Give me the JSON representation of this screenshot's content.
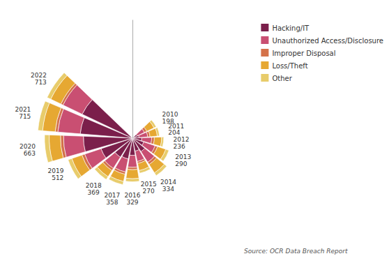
{
  "chart_data": {
    "type": "radial_bar",
    "categories": [
      "2010",
      "2011",
      "2012",
      "2013",
      "2014",
      "2015",
      "2016",
      "2017",
      "2018",
      "2019",
      "2020",
      "2021",
      "2022"
    ],
    "series": [
      {
        "name": "Hacking/IT",
        "color": "#7b1f4b",
        "values": [
          40,
          50,
          70,
          90,
          120,
          100,
          130,
          160,
          170,
          250,
          370,
          395,
          420
        ]
      },
      {
        "name": "Unauthorized Access/Disclosure",
        "color": "#c94f72",
        "values": [
          60,
          65,
          75,
          90,
          95,
          80,
          90,
          100,
          100,
          130,
          150,
          170,
          160
        ]
      },
      {
        "name": "Improper Disposal",
        "color": "#d4724a",
        "values": [
          20,
          18,
          20,
          20,
          20,
          15,
          18,
          18,
          19,
          22,
          23,
          20,
          18
        ]
      },
      {
        "name": "Loss/Theft",
        "color": "#e6a832",
        "values": [
          60,
          55,
          55,
          65,
          75,
          55,
          68,
          55,
          55,
          80,
          85,
          95,
          85
        ]
      },
      {
        "name": "Other",
        "color": "#e8cc6b",
        "values": [
          18,
          16,
          16,
          25,
          24,
          20,
          23,
          25,
          25,
          30,
          35,
          35,
          30
        ]
      }
    ],
    "totals": [
      198,
      204,
      236,
      290,
      334,
      270,
      329,
      358,
      369,
      512,
      663,
      715,
      713
    ],
    "annotations": [
      "Source: OCR Data Breach Report"
    ],
    "ylim": [
      0,
      893.75
    ],
    "stacked": true,
    "data_labels": true,
    "tick_labels": false,
    "grid": false,
    "legend": "upper right"
  }
}
